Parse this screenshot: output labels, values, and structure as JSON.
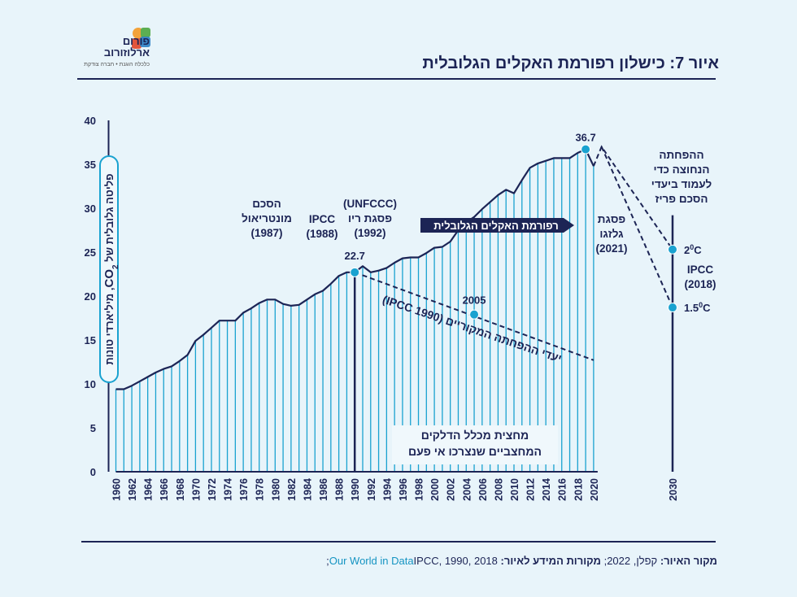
{
  "logo": {
    "line1": "פורום",
    "line2": "ארלוזורוב",
    "tagline": "כלכלה הוגנת • חברה צודקת"
  },
  "title": "איור 7: כישלון רפורמת האקלים הגלובלית",
  "footer": {
    "credit_label": "מקור האיור:",
    "credit_value": "קפלן, 2022;",
    "sources_label": "מקורות המידע לאיור:",
    "sources_highlight": "Our World in Data",
    "sources_rest": "IPCC, 1990, 2018;"
  },
  "colors": {
    "navy": "#1c2455",
    "accent": "#1aa2d0",
    "background": "#e8f4fa",
    "highlight_box": "#f0f8fc"
  },
  "chart_data": {
    "type": "area",
    "title": "איור 7: כישלון רפורמת האקלים הגלובלית",
    "ylabel": "פליטה גלובלית של CO2, מיליארדי טונות",
    "ylabel_parts": [
      "פליטה גלובלית של ",
      "CO",
      "2",
      ", מיליארדי טונות"
    ],
    "ylim": [
      0,
      40
    ],
    "yticks": [
      0,
      5,
      10,
      15,
      20,
      25,
      30,
      35,
      40
    ],
    "xticks": [
      1960,
      1962,
      1964,
      1966,
      1968,
      1970,
      1972,
      1974,
      1976,
      1978,
      1980,
      1982,
      1984,
      1986,
      1988,
      1990,
      1992,
      1994,
      1996,
      1998,
      2000,
      2002,
      2004,
      2006,
      2008,
      2010,
      2012,
      2014,
      2016,
      2018,
      2020,
      2030
    ],
    "series": [
      {
        "name": "global CO2 emissions",
        "x": [
          1960,
          1961,
          1962,
          1963,
          1964,
          1965,
          1966,
          1967,
          1968,
          1969,
          1970,
          1971,
          1972,
          1973,
          1974,
          1975,
          1976,
          1977,
          1978,
          1979,
          1980,
          1981,
          1982,
          1983,
          1984,
          1985,
          1986,
          1987,
          1988,
          1989,
          1990,
          1991,
          1992,
          1993,
          1994,
          1995,
          1996,
          1997,
          1998,
          1999,
          2000,
          2001,
          2002,
          2003,
          2004,
          2005,
          2006,
          2007,
          2008,
          2009,
          2010,
          2011,
          2012,
          2013,
          2014,
          2015,
          2016,
          2017,
          2018,
          2019,
          2020
        ],
        "values": [
          9.4,
          9.4,
          9.8,
          10.3,
          10.8,
          11.3,
          11.7,
          12.0,
          12.6,
          13.3,
          14.9,
          15.6,
          16.4,
          17.2,
          17.2,
          17.2,
          18.1,
          18.6,
          19.2,
          19.6,
          19.6,
          19.1,
          18.9,
          19.0,
          19.6,
          20.2,
          20.6,
          21.4,
          22.3,
          22.7,
          22.7,
          23.4,
          22.7,
          22.9,
          23.2,
          23.8,
          24.3,
          24.4,
          24.4,
          24.9,
          25.5,
          25.6,
          26.2,
          27.5,
          28.4,
          29.0,
          29.9,
          30.7,
          31.5,
          32.1,
          31.7,
          33.2,
          34.6,
          35.1,
          35.4,
          35.7,
          35.7,
          35.7,
          36.3,
          36.7,
          34.8
        ]
      },
      {
        "name": "IPCC 1990 original reduction targets",
        "x": [
          1990,
          2020
        ],
        "values": [
          22.7,
          12.7
        ]
      },
      {
        "name": "post-2020 path to 2C",
        "x": [
          2020,
          2021,
          2030
        ],
        "values": [
          34.8,
          37.0,
          25.3
        ]
      },
      {
        "name": "post-2020 path to 1.5C",
        "x": [
          2021,
          2030
        ],
        "values": [
          37.0,
          18.7
        ]
      }
    ],
    "points": [
      {
        "x": 1990,
        "y": 22.7,
        "label": "22.7"
      },
      {
        "x": 2005,
        "y": 17.9,
        "label": "2005"
      },
      {
        "x": 2019,
        "y": 36.7,
        "label": "36.7"
      },
      {
        "x": 2030,
        "y": 25.3,
        "label": "2",
        "label_sup": "0",
        "label_unit": "C"
      },
      {
        "x": 2030,
        "y": 18.7,
        "label": "1.5",
        "label_sup": "0",
        "label_unit": "C"
      }
    ],
    "annotations": {
      "montreal": [
        "הסכם",
        "מונטריאול",
        "(1987)"
      ],
      "ipcc1988": [
        "IPCC",
        "(1988)"
      ],
      "rio": [
        "(UNFCCC)",
        "פסגת ריו",
        "(1992)"
      ],
      "glasgow": [
        "פסגת",
        "גלזגו",
        "(2021)"
      ],
      "paris": [
        "ההפחתה",
        "הנחוצה כדי",
        "לעמוד ביעדי",
        "הסכם פריז"
      ],
      "ipcc2018": [
        "IPCC",
        "(2018)"
      ],
      "reform_arrow": "רפורמת האקלים הגלובלית",
      "original_targets": "יעדי ההפחתה המקוריים (IPCC 1990)",
      "fossil_box": [
        "מחצית מכלל הדלקים",
        "המחצביים שנצרכו אי פעם"
      ]
    }
  }
}
